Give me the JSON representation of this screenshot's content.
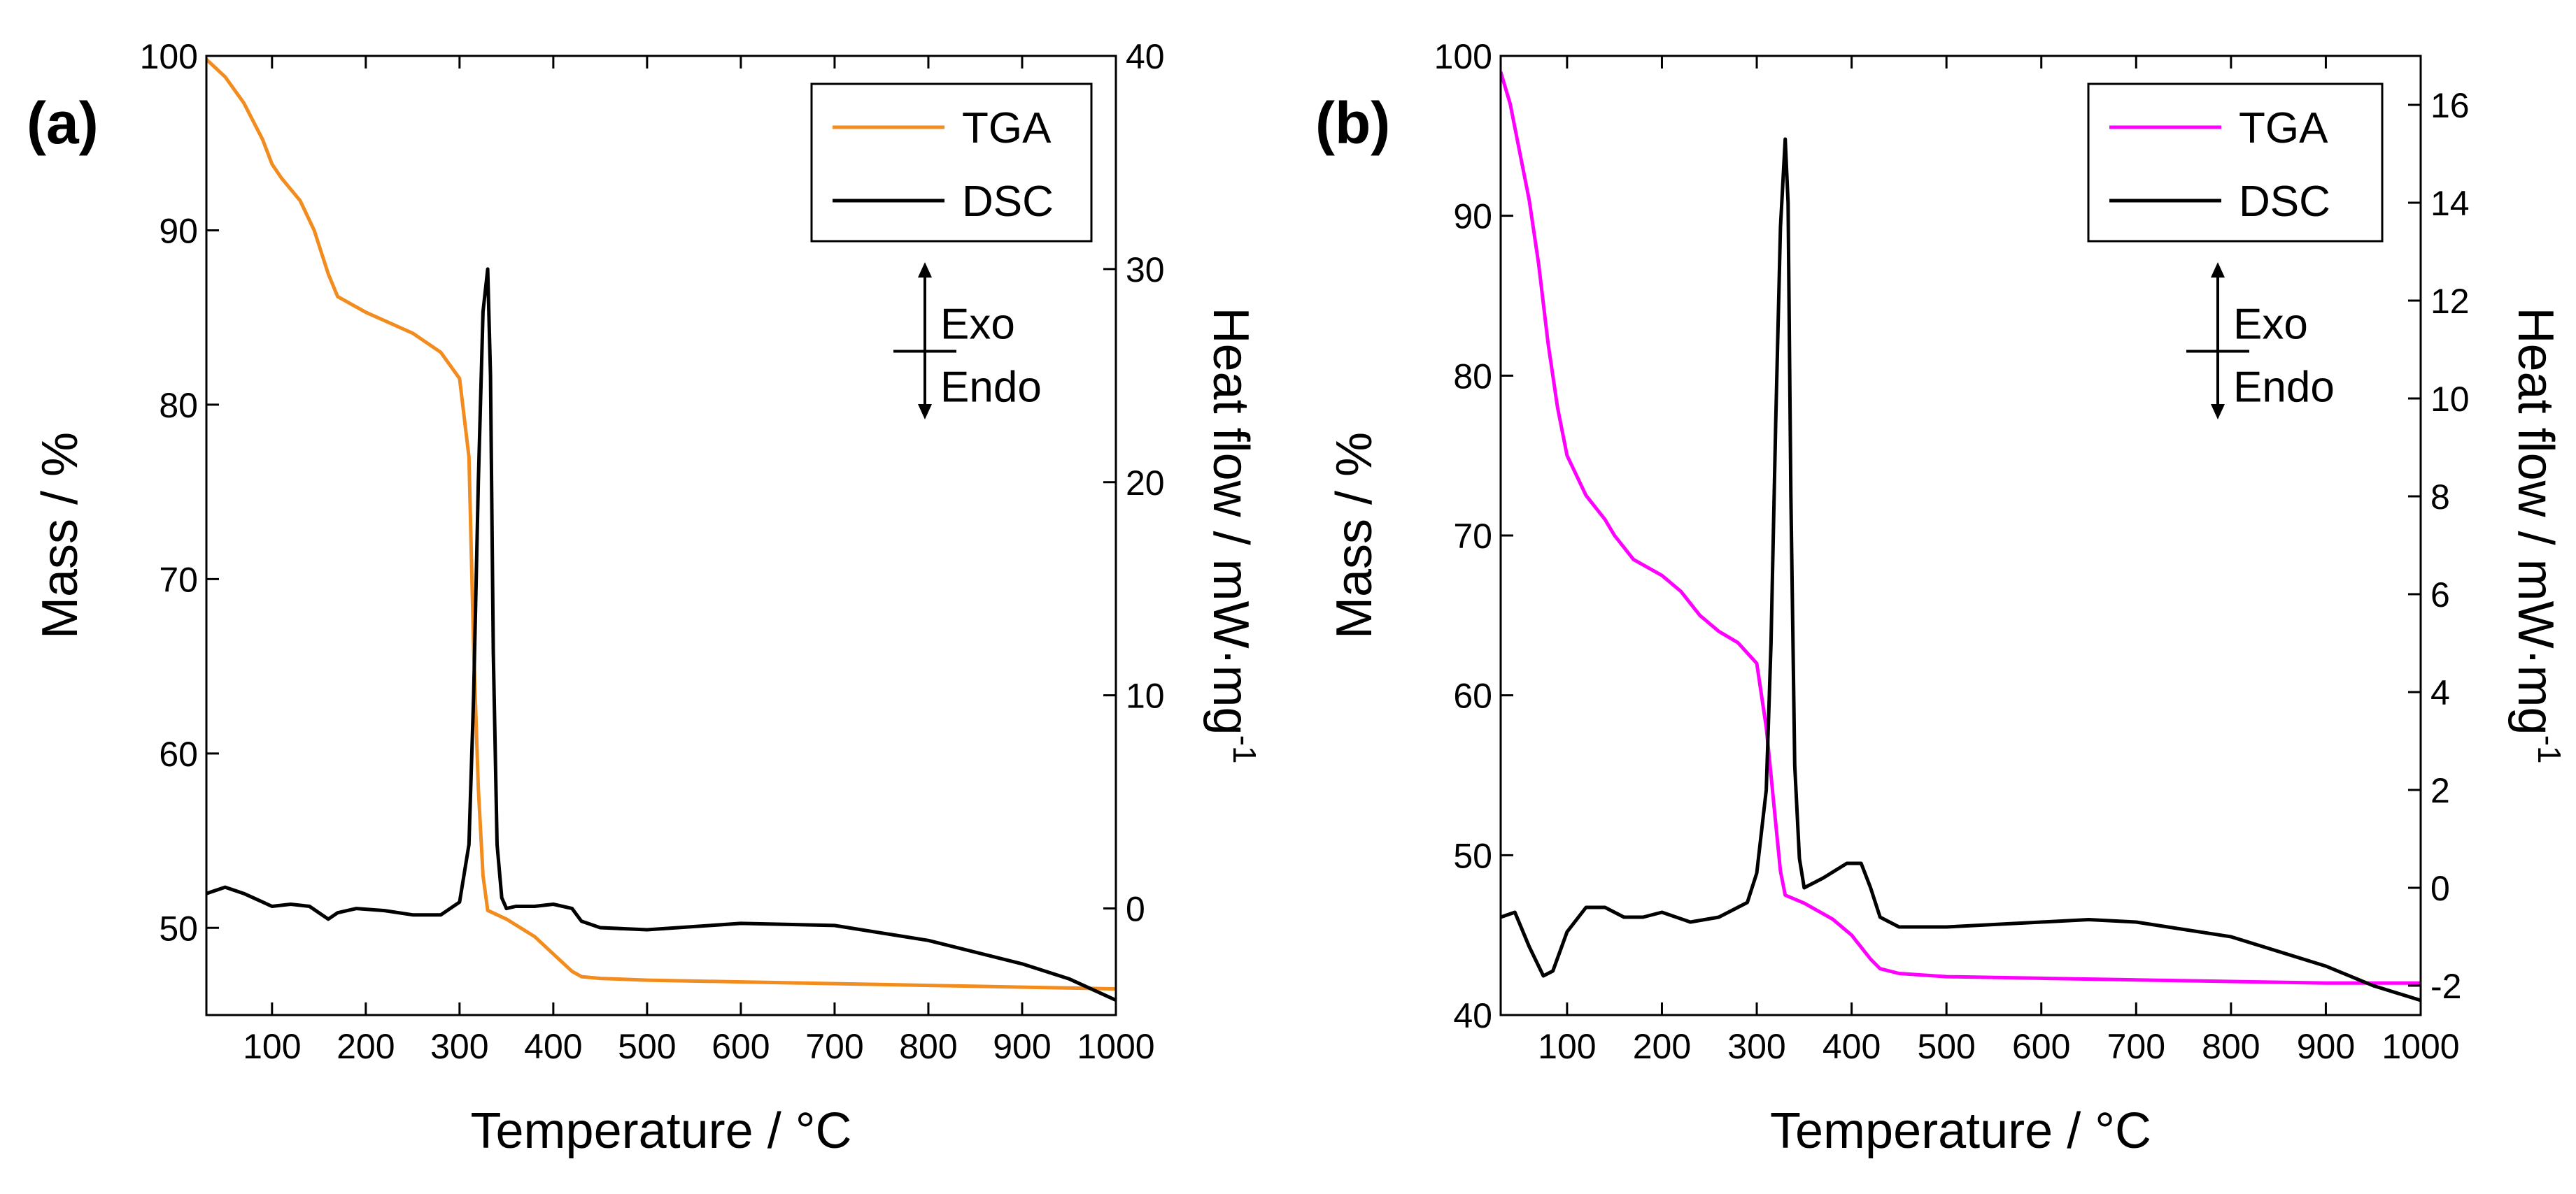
{
  "chart_data": [
    {
      "type": "line",
      "panel_label": "(a)",
      "xlabel": "Temperature / °C",
      "ylabel_left": "Mass / %",
      "ylabel_right_main": "Heat flow / mW·mg",
      "ylabel_right_sup": "-1",
      "xlim": [
        30,
        1000
      ],
      "ylim_left": [
        45,
        100
      ],
      "ylim_right": [
        -5,
        40
      ],
      "x_ticks": [
        100,
        200,
        300,
        400,
        500,
        600,
        700,
        800,
        900,
        1000
      ],
      "y_left_ticks": [
        50,
        60,
        70,
        80,
        90,
        100
      ],
      "y_right_ticks": [
        0,
        10,
        20,
        30,
        40
      ],
      "legend": [
        "TGA",
        "DSC"
      ],
      "annotation": {
        "exo": "Exo",
        "endo": "Endo"
      },
      "series": [
        {
          "name": "TGA",
          "axis": "left",
          "color": "#F28C1E",
          "x": [
            30,
            50,
            70,
            90,
            100,
            110,
            130,
            145,
            160,
            170,
            200,
            250,
            280,
            300,
            310,
            315,
            320,
            325,
            330,
            350,
            380,
            400,
            420,
            430,
            450,
            500,
            600,
            700,
            800,
            900,
            950,
            1000
          ],
          "y": [
            99.8,
            98.8,
            97.3,
            95.2,
            93.8,
            93.0,
            91.7,
            90.0,
            87.5,
            86.2,
            85.3,
            84.1,
            83.0,
            81.5,
            77.0,
            66.0,
            58.0,
            53.0,
            51.0,
            50.5,
            49.5,
            48.5,
            47.5,
            47.2,
            47.1,
            47.0,
            46.9,
            46.8,
            46.7,
            46.6,
            46.55,
            46.5
          ]
        },
        {
          "name": "DSC",
          "axis": "right",
          "color": "#000000",
          "x": [
            30,
            50,
            70,
            100,
            120,
            140,
            160,
            170,
            190,
            220,
            250,
            280,
            300,
            310,
            315,
            320,
            325,
            330,
            333,
            336,
            340,
            345,
            350,
            360,
            380,
            400,
            420,
            430,
            450,
            500,
            600,
            700,
            800,
            900,
            950,
            1000
          ],
          "y": [
            0.7,
            1.0,
            0.7,
            0.1,
            0.2,
            0.1,
            -0.5,
            -0.2,
            0.0,
            -0.1,
            -0.3,
            -0.3,
            0.3,
            3.0,
            10.0,
            20.0,
            28.0,
            30.0,
            25.0,
            12.0,
            3.0,
            0.5,
            0.0,
            0.1,
            0.1,
            0.2,
            0.0,
            -0.6,
            -0.9,
            -1.0,
            -0.7,
            -0.8,
            -1.5,
            -2.6,
            -3.3,
            -4.3
          ]
        }
      ]
    },
    {
      "type": "line",
      "panel_label": "(b)",
      "xlabel": "Temperature / °C",
      "ylabel_left": "Mass / %",
      "ylabel_right_main": "Heat flow / mW·mg",
      "ylabel_right_sup": "-1",
      "xlim": [
        30,
        1000
      ],
      "ylim_left": [
        40,
        100
      ],
      "ylim_right": [
        -2.6,
        17
      ],
      "x_ticks": [
        100,
        200,
        300,
        400,
        500,
        600,
        700,
        800,
        900,
        1000
      ],
      "y_left_ticks": [
        40,
        50,
        60,
        70,
        80,
        90,
        100
      ],
      "y_right_ticks": [
        -2,
        0,
        2,
        4,
        6,
        8,
        10,
        12,
        14,
        16
      ],
      "legend": [
        "TGA",
        "DSC"
      ],
      "annotation": {
        "exo": "Exo",
        "endo": "Endo"
      },
      "series": [
        {
          "name": "TGA",
          "axis": "left",
          "color": "#FF00FF",
          "x": [
            30,
            40,
            50,
            60,
            70,
            80,
            90,
            100,
            120,
            140,
            150,
            170,
            200,
            220,
            240,
            260,
            280,
            300,
            310,
            315,
            320,
            325,
            330,
            350,
            380,
            400,
            420,
            430,
            450,
            500,
            600,
            700,
            800,
            900,
            1000
          ],
          "y": [
            99.0,
            97.0,
            94.0,
            91.0,
            87.0,
            82.0,
            78.0,
            75.0,
            72.5,
            71.0,
            70.0,
            68.5,
            67.5,
            66.5,
            65.0,
            64.0,
            63.3,
            62.0,
            58.0,
            55.0,
            52.0,
            49.0,
            47.5,
            47.0,
            46.0,
            45.0,
            43.5,
            42.9,
            42.6,
            42.4,
            42.3,
            42.2,
            42.1,
            42.0,
            42.0
          ]
        },
        {
          "name": "DSC",
          "axis": "right",
          "color": "#000000",
          "x": [
            30,
            45,
            60,
            75,
            85,
            100,
            120,
            140,
            160,
            180,
            200,
            230,
            260,
            290,
            300,
            310,
            315,
            320,
            325,
            330,
            333,
            336,
            340,
            345,
            350,
            370,
            395,
            410,
            420,
            430,
            450,
            500,
            600,
            650,
            700,
            800,
            900,
            950,
            1000
          ],
          "y": [
            -0.6,
            -0.5,
            -1.2,
            -1.8,
            -1.7,
            -0.9,
            -0.4,
            -0.4,
            -0.6,
            -0.6,
            -0.5,
            -0.7,
            -0.6,
            -0.3,
            0.3,
            2.0,
            5.0,
            9.5,
            13.5,
            15.3,
            14.0,
            8.0,
            2.5,
            0.6,
            0.0,
            0.2,
            0.5,
            0.5,
            0.0,
            -0.6,
            -0.8,
            -0.8,
            -0.7,
            -0.65,
            -0.7,
            -1.0,
            -1.6,
            -2.0,
            -2.3
          ]
        }
      ]
    }
  ]
}
